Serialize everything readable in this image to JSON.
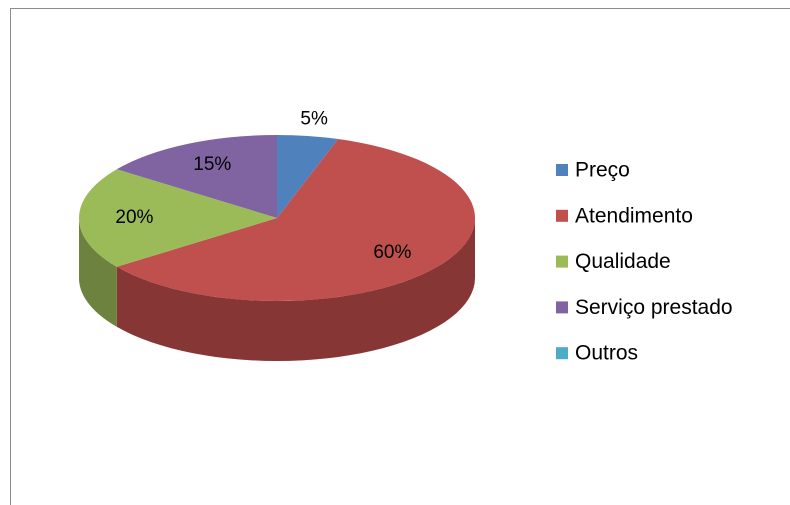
{
  "chart_data": {
    "type": "pie",
    "categories": [
      "Preço",
      "Atendimento",
      "Qualidade",
      "Serviço prestado",
      "Outros"
    ],
    "values": [
      5,
      60,
      20,
      15,
      0
    ],
    "value_labels": [
      "5%",
      "60%",
      "20%",
      "15%",
      null
    ],
    "colors": [
      "#4f81bd",
      "#c0504d",
      "#9bbb59",
      "#8064a2",
      "#4bacc6"
    ],
    "legend": "right"
  }
}
